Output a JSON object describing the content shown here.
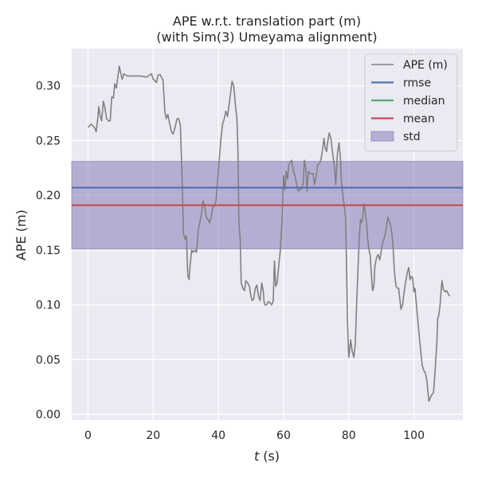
{
  "chart_data": {
    "type": "line",
    "title_line1": "APE w.r.t. translation part (m)",
    "title_line2": "(with Sim(3) Umeyama alignment)",
    "xlabel": "t (s)",
    "xlabel_var": "t",
    "xlabel_unit": "(s)",
    "ylabel": "APE (m)",
    "xlim": [
      -5,
      115
    ],
    "ylim": [
      -0.005,
      0.334
    ],
    "xticks": [
      0,
      20,
      40,
      60,
      80,
      100
    ],
    "yticks": [
      0.0,
      0.05,
      0.1,
      0.15,
      0.2,
      0.25,
      0.3
    ],
    "ytick_labels": [
      "0.00",
      "0.05",
      "0.10",
      "0.15",
      "0.20",
      "0.25",
      "0.30"
    ],
    "grid": true,
    "legend_position": "top-right",
    "background_color": "#eaeaf2",
    "stats": {
      "rmse": 0.207,
      "median": 0.191,
      "mean": 0.191,
      "std_band": [
        0.151,
        0.231
      ]
    },
    "legend": [
      {
        "label": "APE (m)",
        "kind": "line",
        "color": "#808080"
      },
      {
        "label": "rmse",
        "kind": "line",
        "color": "#4c72b0"
      },
      {
        "label": "median",
        "kind": "line",
        "color": "#55a868"
      },
      {
        "label": "mean",
        "kind": "line",
        "color": "#c44e52"
      },
      {
        "label": "std",
        "kind": "patch",
        "color": "#8172b2"
      }
    ],
    "series": [
      {
        "name": "APE (m)",
        "color": "#808080",
        "points": [
          [
            0.0,
            0.262
          ],
          [
            1.0,
            0.265
          ],
          [
            2.0,
            0.262
          ],
          [
            2.5,
            0.258
          ],
          [
            3.0,
            0.27
          ],
          [
            3.3,
            0.281
          ],
          [
            3.7,
            0.273
          ],
          [
            4.2,
            0.268
          ],
          [
            4.7,
            0.286
          ],
          [
            5.2,
            0.28
          ],
          [
            5.7,
            0.27
          ],
          [
            6.3,
            0.268
          ],
          [
            6.8,
            0.268
          ],
          [
            7.3,
            0.29
          ],
          [
            7.8,
            0.289
          ],
          [
            8.2,
            0.302
          ],
          [
            8.7,
            0.298
          ],
          [
            9.2,
            0.309
          ],
          [
            9.6,
            0.318
          ],
          [
            10.0,
            0.312
          ],
          [
            10.5,
            0.306
          ],
          [
            11.0,
            0.311
          ],
          [
            12.0,
            0.309
          ],
          [
            14.0,
            0.309
          ],
          [
            16.0,
            0.309
          ],
          [
            18.0,
            0.308
          ],
          [
            19.0,
            0.31
          ],
          [
            19.5,
            0.311
          ],
          [
            20.0,
            0.306
          ],
          [
            21.0,
            0.303
          ],
          [
            21.5,
            0.31
          ],
          [
            22.2,
            0.31
          ],
          [
            23.0,
            0.305
          ],
          [
            23.6,
            0.276
          ],
          [
            24.0,
            0.27
          ],
          [
            24.5,
            0.274
          ],
          [
            25.0,
            0.266
          ],
          [
            25.6,
            0.258
          ],
          [
            26.1,
            0.256
          ],
          [
            26.7,
            0.262
          ],
          [
            27.3,
            0.27
          ],
          [
            27.8,
            0.27
          ],
          [
            28.3,
            0.265
          ],
          [
            28.8,
            0.223
          ],
          [
            29.3,
            0.165
          ],
          [
            29.8,
            0.16
          ],
          [
            30.2,
            0.163
          ],
          [
            30.6,
            0.127
          ],
          [
            31.0,
            0.123
          ],
          [
            31.3,
            0.135
          ],
          [
            31.8,
            0.15
          ],
          [
            32.3,
            0.148
          ],
          [
            32.8,
            0.15
          ],
          [
            33.3,
            0.148
          ],
          [
            33.8,
            0.168
          ],
          [
            34.3,
            0.175
          ],
          [
            34.8,
            0.183
          ],
          [
            35.3,
            0.195
          ],
          [
            35.8,
            0.19
          ],
          [
            36.3,
            0.18
          ],
          [
            36.8,
            0.178
          ],
          [
            37.3,
            0.175
          ],
          [
            37.8,
            0.18
          ],
          [
            38.3,
            0.19
          ],
          [
            38.8,
            0.19
          ],
          [
            39.3,
            0.196
          ],
          [
            39.8,
            0.215
          ],
          [
            40.3,
            0.235
          ],
          [
            40.8,
            0.252
          ],
          [
            41.3,
            0.265
          ],
          [
            41.8,
            0.27
          ],
          [
            42.3,
            0.277
          ],
          [
            42.8,
            0.272
          ],
          [
            43.3,
            0.283
          ],
          [
            43.8,
            0.295
          ],
          [
            44.2,
            0.304
          ],
          [
            44.7,
            0.3
          ],
          [
            45.2,
            0.283
          ],
          [
            45.7,
            0.27
          ],
          [
            46.0,
            0.24
          ],
          [
            46.3,
            0.175
          ],
          [
            46.7,
            0.16
          ],
          [
            47.0,
            0.12
          ],
          [
            47.5,
            0.115
          ],
          [
            48.0,
            0.113
          ],
          [
            48.4,
            0.122
          ],
          [
            49.0,
            0.12
          ],
          [
            49.5,
            0.117
          ],
          [
            50.0,
            0.108
          ],
          [
            50.3,
            0.104
          ],
          [
            50.8,
            0.105
          ],
          [
            51.3,
            0.115
          ],
          [
            51.8,
            0.118
          ],
          [
            52.3,
            0.108
          ],
          [
            52.8,
            0.104
          ],
          [
            53.3,
            0.12
          ],
          [
            53.8,
            0.112
          ],
          [
            54.0,
            0.103
          ],
          [
            54.3,
            0.1
          ],
          [
            54.8,
            0.1
          ],
          [
            55.3,
            0.103
          ],
          [
            55.8,
            0.102
          ],
          [
            56.3,
            0.1
          ],
          [
            56.8,
            0.103
          ],
          [
            57.2,
            0.14
          ],
          [
            57.6,
            0.117
          ],
          [
            58.0,
            0.12
          ],
          [
            58.5,
            0.135
          ],
          [
            59.0,
            0.15
          ],
          [
            59.5,
            0.175
          ],
          [
            60.0,
            0.218
          ],
          [
            60.4,
            0.205
          ],
          [
            60.8,
            0.222
          ],
          [
            61.2,
            0.215
          ],
          [
            61.6,
            0.228
          ],
          [
            62.0,
            0.23
          ],
          [
            62.5,
            0.232
          ],
          [
            63.0,
            0.222
          ],
          [
            63.5,
            0.218
          ],
          [
            64.0,
            0.21
          ],
          [
            64.5,
            0.204
          ],
          [
            65.0,
            0.205
          ],
          [
            65.5,
            0.206
          ],
          [
            66.0,
            0.21
          ],
          [
            66.4,
            0.232
          ],
          [
            66.8,
            0.225
          ],
          [
            67.2,
            0.204
          ],
          [
            67.6,
            0.222
          ],
          [
            68.0,
            0.22
          ],
          [
            68.5,
            0.22
          ],
          [
            69.0,
            0.22
          ],
          [
            69.5,
            0.21
          ],
          [
            70.0,
            0.218
          ],
          [
            70.5,
            0.228
          ],
          [
            71.0,
            0.229
          ],
          [
            71.5,
            0.233
          ],
          [
            72.0,
            0.243
          ],
          [
            72.4,
            0.252
          ],
          [
            72.8,
            0.243
          ],
          [
            73.2,
            0.24
          ],
          [
            73.6,
            0.25
          ],
          [
            74.0,
            0.257
          ],
          [
            74.5,
            0.252
          ],
          [
            75.0,
            0.24
          ],
          [
            75.5,
            0.228
          ],
          [
            76.0,
            0.21
          ],
          [
            76.5,
            0.238
          ],
          [
            77.0,
            0.248
          ],
          [
            77.4,
            0.235
          ],
          [
            77.8,
            0.21
          ],
          [
            78.2,
            0.2
          ],
          [
            78.6,
            0.19
          ],
          [
            79.0,
            0.18
          ],
          [
            79.3,
            0.14
          ],
          [
            79.6,
            0.085
          ],
          [
            80.0,
            0.052
          ],
          [
            80.3,
            0.06
          ],
          [
            80.6,
            0.068
          ],
          [
            81.0,
            0.058
          ],
          [
            81.3,
            0.055
          ],
          [
            81.6,
            0.052
          ],
          [
            82.0,
            0.065
          ],
          [
            82.4,
            0.1
          ],
          [
            82.8,
            0.13
          ],
          [
            83.2,
            0.16
          ],
          [
            83.6,
            0.178
          ],
          [
            84.0,
            0.175
          ],
          [
            84.3,
            0.18
          ],
          [
            84.6,
            0.192
          ],
          [
            85.0,
            0.186
          ],
          [
            85.4,
            0.176
          ],
          [
            85.8,
            0.16
          ],
          [
            86.2,
            0.15
          ],
          [
            86.6,
            0.145
          ],
          [
            87.0,
            0.125
          ],
          [
            87.3,
            0.113
          ],
          [
            87.7,
            0.117
          ],
          [
            88.0,
            0.135
          ],
          [
            88.5,
            0.143
          ],
          [
            89.0,
            0.146
          ],
          [
            89.5,
            0.141
          ],
          [
            90.0,
            0.15
          ],
          [
            90.5,
            0.158
          ],
          [
            91.0,
            0.162
          ],
          [
            91.5,
            0.17
          ],
          [
            92.0,
            0.18
          ],
          [
            92.5,
            0.176
          ],
          [
            93.0,
            0.17
          ],
          [
            93.5,
            0.158
          ],
          [
            94.0,
            0.13
          ],
          [
            94.5,
            0.117
          ],
          [
            95.0,
            0.115
          ],
          [
            95.3,
            0.115
          ],
          [
            95.6,
            0.107
          ],
          [
            96.0,
            0.096
          ],
          [
            96.5,
            0.1
          ],
          [
            97.0,
            0.112
          ],
          [
            97.5,
            0.122
          ],
          [
            98.0,
            0.13
          ],
          [
            98.4,
            0.134
          ],
          [
            98.8,
            0.123
          ],
          [
            99.2,
            0.126
          ],
          [
            99.6,
            0.125
          ],
          [
            100.0,
            0.112
          ],
          [
            100.3,
            0.115
          ],
          [
            100.6,
            0.105
          ],
          [
            101.0,
            0.092
          ],
          [
            101.5,
            0.075
          ],
          [
            102.0,
            0.06
          ],
          [
            102.5,
            0.045
          ],
          [
            103.0,
            0.04
          ],
          [
            103.5,
            0.038
          ],
          [
            104.0,
            0.03
          ],
          [
            104.3,
            0.02
          ],
          [
            104.6,
            0.012
          ],
          [
            105.0,
            0.015
          ],
          [
            105.5,
            0.018
          ],
          [
            106.0,
            0.02
          ],
          [
            106.5,
            0.04
          ],
          [
            107.0,
            0.065
          ],
          [
            107.3,
            0.088
          ],
          [
            107.6,
            0.09
          ],
          [
            108.0,
            0.1
          ],
          [
            108.3,
            0.112
          ],
          [
            108.6,
            0.122
          ],
          [
            109.0,
            0.114
          ],
          [
            109.5,
            0.112
          ],
          [
            110.0,
            0.113
          ],
          [
            110.5,
            0.11
          ],
          [
            111.0,
            0.108
          ]
        ]
      }
    ]
  }
}
